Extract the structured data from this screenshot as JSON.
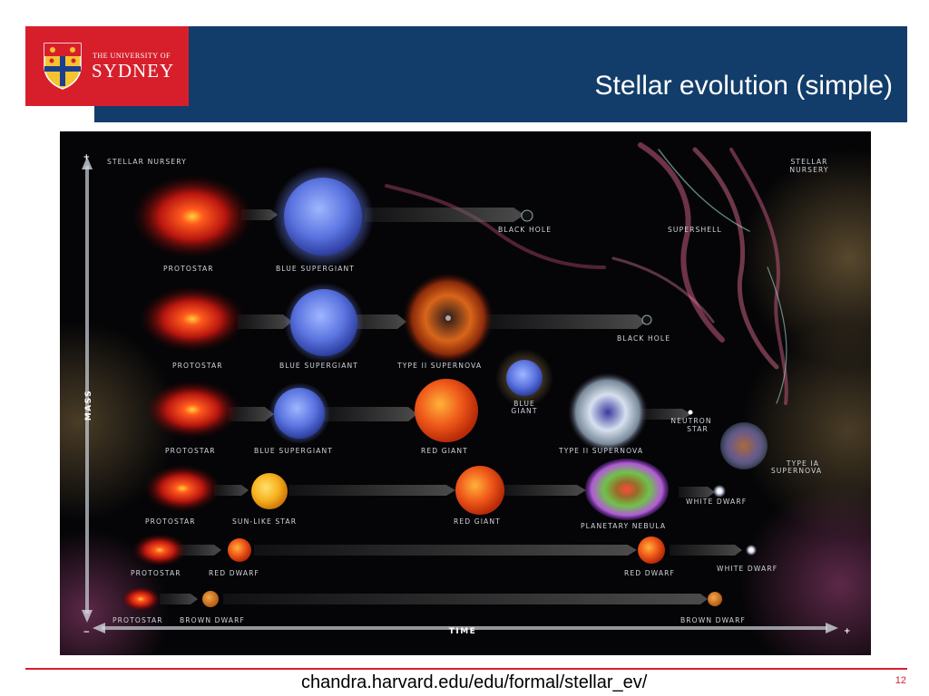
{
  "logo": {
    "small_text": "THE UNIVERSITY OF",
    "big_text": "SYDNEY"
  },
  "title": "Stellar evolution (simple)",
  "diagram": {
    "corner_labels": {
      "stellar_nursery_left": "STELLAR NURSERY",
      "stellar_nursery_right_1": "STELLAR",
      "stellar_nursery_right_2": "NURSERY",
      "supershell": "SUPERSHELL"
    },
    "axes": {
      "mass": "MASS",
      "time": "TIME",
      "plus": "+",
      "minus": "−"
    },
    "rows": [
      {
        "labels": {
          "protostar": "PROTOSTAR",
          "blue_supergiant": "BLUE SUPERGIANT",
          "black_hole": "BLACK HOLE"
        }
      },
      {
        "labels": {
          "protostar": "PROTOSTAR",
          "blue_supergiant": "BLUE SUPERGIANT",
          "type_ii_supernova": "TYPE II SUPERNOVA",
          "black_hole": "BLACK HOLE"
        }
      },
      {
        "labels": {
          "protostar": "PROTOSTAR",
          "blue_supergiant": "BLUE SUPERGIANT",
          "red_giant": "RED GIANT",
          "blue_giant_1": "BLUE",
          "blue_giant_2": "GIANT",
          "type_ii_supernova": "TYPE II SUPERNOVA",
          "neutron_star_1": "NEUTRON",
          "neutron_star_2": "STAR",
          "type_ia_1": "TYPE IA",
          "type_ia_2": "SUPERNOVA"
        }
      },
      {
        "labels": {
          "protostar": "PROTOSTAR",
          "sun_like_star": "SUN-LIKE STAR",
          "red_giant": "RED GIANT",
          "planetary_nebula": "PLANETARY NEBULA",
          "white_dwarf": "WHITE DWARF"
        }
      },
      {
        "labels": {
          "protostar": "PROTOSTAR",
          "red_dwarf": "RED DWARF",
          "red_dwarf_end": "RED DWARF",
          "white_dwarf": "WHITE DWARF"
        }
      },
      {
        "labels": {
          "protostar": "PROTOSTAR",
          "brown_dwarf": "BROWN DWARF",
          "brown_dwarf_end": "BROWN DWARF"
        }
      }
    ]
  },
  "footer": {
    "source": "chandra.harvard.edu/edu/formal/stellar_ev/",
    "page_number": "12"
  }
}
